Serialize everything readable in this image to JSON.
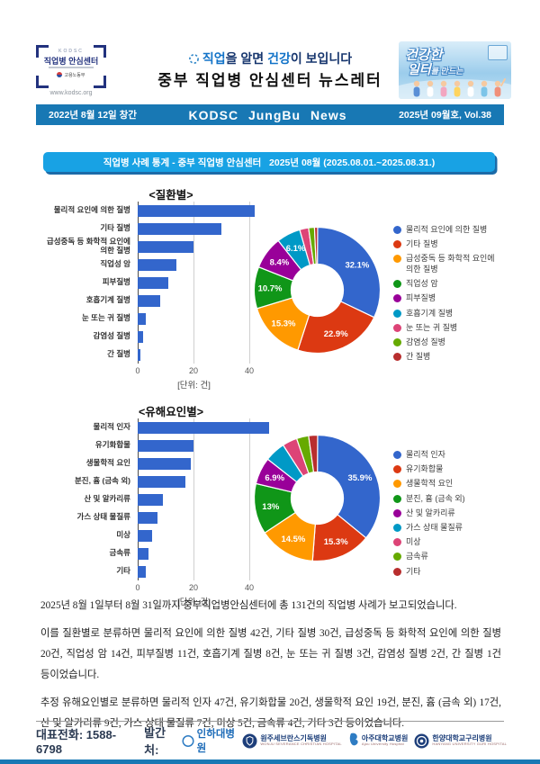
{
  "header": {
    "logo": {
      "kodsc": "KODSC",
      "title": "직업병 안심센터",
      "ministry": "고용노동부",
      "url": "www.kodsc.org"
    },
    "slogan": {
      "parts": [
        {
          "text": "직업",
          "accent": true
        },
        {
          "text": "을 알면 ",
          "accent": false
        },
        {
          "text": "건강",
          "accent": true
        },
        {
          "text": "이 보입니다",
          "accent": false
        }
      ]
    },
    "newsletter_title": "중부 직업병 안심센터 뉴스레터",
    "promo": {
      "line1": "건강한",
      "line2": "일터",
      "line2_suffix": "를 만드는"
    }
  },
  "band": {
    "left": "2022년 8월 12일 창간",
    "center": "KODSC JungBu News",
    "right": "2025년 09월호, Vol.38"
  },
  "stats_title": "직업병 사례 통계 - 중부 직업병 안심센터   2025년 08월 (2025.08.01.~2025.08.31.)",
  "chart_data": [
    {
      "type": "bar+donut",
      "caption": "<질환별>",
      "unit_label": "[단위: 건]",
      "x_ticks": [
        0,
        20,
        40
      ],
      "xlim": [
        0,
        48
      ],
      "categories": [
        "물리적 요인에 의한 질병",
        "기타 질병",
        "급성중독 등 화학적 요인에 의한 질병",
        "직업성 암",
        "피부질병",
        "호흡기계 질병",
        "눈 또는 귀 질병",
        "감염성 질병",
        "간 질병"
      ],
      "values": [
        42,
        30,
        20,
        14,
        11,
        8,
        3,
        2,
        1
      ],
      "percents": [
        32.1,
        22.9,
        15.3,
        10.7,
        8.4,
        6.1,
        2.3,
        1.5,
        0.8
      ],
      "percent_labels": [
        "32.1%",
        "22.9%",
        "15.3%",
        "10.7%",
        "8.4%",
        "6.1%",
        "",
        "",
        ""
      ],
      "legend_position": "right",
      "grid": true
    },
    {
      "type": "bar+donut",
      "caption": "<유해요인별>",
      "unit_label": "[단위: 건]",
      "x_ticks": [
        0,
        20,
        40
      ],
      "xlim": [
        0,
        48
      ],
      "categories": [
        "물리적 인자",
        "유기화합물",
        "생물학적 요인",
        "분진, 흄 (금속 외)",
        "산 및 알카리류",
        "가스 상태 물질류",
        "미상",
        "금속류",
        "기타"
      ],
      "values": [
        47,
        20,
        19,
        17,
        9,
        7,
        5,
        4,
        3
      ],
      "percents": [
        35.9,
        15.3,
        14.5,
        13.0,
        6.9,
        5.3,
        3.8,
        3.1,
        2.3
      ],
      "percent_labels": [
        "35.9%",
        "15.3%",
        "14.5%",
        "13%",
        "6.9%",
        "",
        "",
        "",
        ""
      ],
      "legend_position": "right",
      "grid": true
    }
  ],
  "body": {
    "p1": "2025년 8월 1일부터 8월 31일까지 중부직업병안심센터에 총 131건의 직업병 사례가 보고되었습니다.",
    "p2": "이를 질환별로 분류하면 물리적 요인에 의한 질병 42건, 기타 질병 30건, 급성중독 등 화학적 요인에 의한 질병 20건, 직업성 암 14건, 피부질병 11건, 호흡기계 질병 8건, 눈 또는 귀 질병 3건, 감염성 질병 2건, 간 질병 1건 등이었습니다.",
    "p3": "추정 유해요인별로 분류하면 물리적 인자 47건, 유기화합물 20건, 생물학적 요인 19건, 분진, 흄 (금속 외) 17건, 산 및 알카리류 9건, 가스 상태 물질류 7건, 미상 5건, 금속류 4건, 기타 3건 등이었습니다."
  },
  "footer": {
    "phone_label": "대표전화:",
    "phone_value": "1588-6798",
    "publisher_label": "발간처:",
    "hospitals": [
      {
        "name": "인하대병원",
        "caption": ""
      },
      {
        "name": "원주세브란스기독병원",
        "caption": "WONJU SEVERANCE CHRISTIAN HOSPITAL"
      },
      {
        "name": "아주대학교병원",
        "caption": "Ajou University Hospital"
      },
      {
        "name": "한양대학교구리병원",
        "caption": "HANYANG UNIVERSITY GURI HOSPITAL"
      }
    ]
  },
  "colors": {
    "band_blue": "#1878b4",
    "stats_blue": "#18a2e4",
    "stats_shadow": "#1c6ba8",
    "bar_blue": "#3366CC",
    "palette": [
      "#3366CC",
      "#DC3912",
      "#FF9900",
      "#109618",
      "#990099",
      "#0099C6",
      "#DD4477",
      "#66AA00",
      "#B82E2E"
    ]
  }
}
